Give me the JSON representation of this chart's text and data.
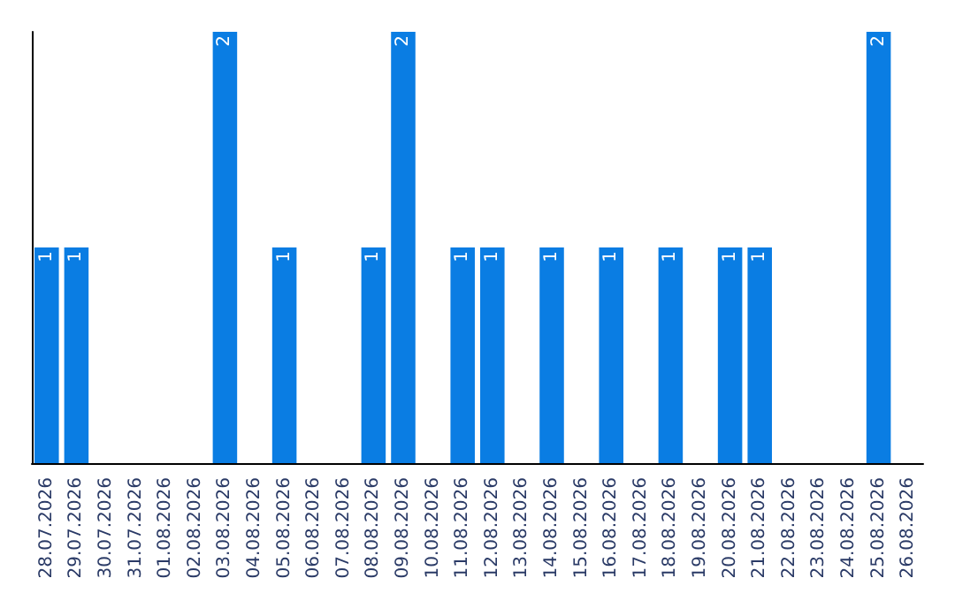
{
  "chart_data": {
    "type": "bar",
    "categories": [
      "28.07.2026",
      "29.07.2026",
      "30.07.2026",
      "31.07.2026",
      "01.08.2026",
      "02.08.2026",
      "03.08.2026",
      "04.08.2026",
      "05.08.2026",
      "06.08.2026",
      "07.08.2026",
      "08.08.2026",
      "09.08.2026",
      "10.08.2026",
      "11.08.2026",
      "12.08.2026",
      "13.08.2026",
      "14.08.2026",
      "15.08.2026",
      "16.08.2026",
      "17.08.2026",
      "18.08.2026",
      "19.08.2026",
      "20.08.2026",
      "21.08.2026",
      "22.08.2026",
      "23.08.2026",
      "24.08.2026",
      "25.08.2026",
      "26.08.2026"
    ],
    "values": [
      1,
      1,
      0,
      0,
      0,
      0,
      2,
      0,
      1,
      0,
      0,
      1,
      2,
      0,
      1,
      1,
      0,
      1,
      0,
      1,
      0,
      1,
      0,
      1,
      1,
      0,
      0,
      0,
      2,
      0
    ],
    "value_labels": [
      "1",
      "1",
      null,
      null,
      null,
      null,
      "2",
      null,
      "1",
      null,
      null,
      "1",
      "2",
      null,
      "1",
      "1",
      null,
      "1",
      null,
      "1",
      null,
      "1",
      null,
      "1",
      "1",
      null,
      null,
      null,
      "2",
      null
    ],
    "color": "#0a7de3",
    "tick_labels": "x",
    "grid": false
  }
}
